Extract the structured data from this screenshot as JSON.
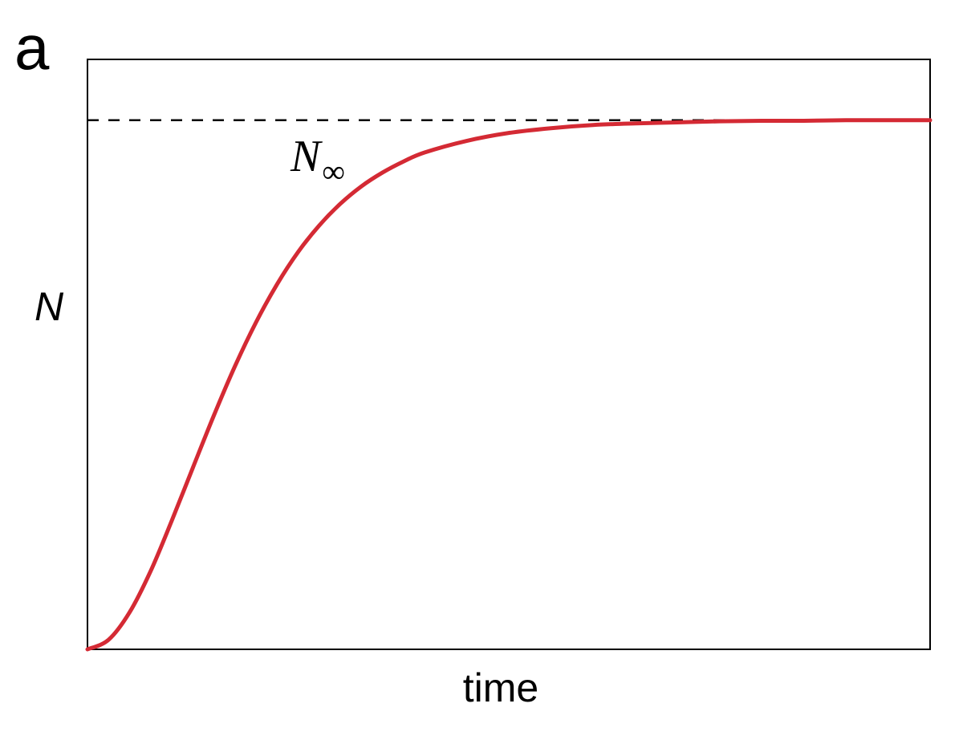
{
  "panel_label": "a",
  "chart_data": {
    "type": "line",
    "xlabel": "time",
    "ylabel": "N",
    "xlim": [
      0,
      10
    ],
    "ylim": [
      0,
      1.115
    ],
    "grid": false,
    "legend": "none",
    "colors": {
      "curve": "#d42a34",
      "asymptote": "#000000",
      "frame": "#000000"
    },
    "series": [
      {
        "x": [
          0,
          0.25,
          0.5,
          0.75,
          1.0,
          1.25,
          1.5,
          1.75,
          2.0,
          2.25,
          2.5,
          2.75,
          3.0,
          3.25,
          3.5,
          3.75,
          4.0,
          4.5,
          5.0,
          5.5,
          6.0,
          6.5,
          7.0,
          7.5,
          8.0,
          8.5,
          9.0,
          9.5,
          10.0
        ],
        "y": [
          0.0,
          0.018,
          0.07,
          0.148,
          0.243,
          0.343,
          0.442,
          0.535,
          0.618,
          0.69,
          0.751,
          0.801,
          0.842,
          0.875,
          0.901,
          0.922,
          0.939,
          0.961,
          0.976,
          0.985,
          0.991,
          0.994,
          0.996,
          0.998,
          0.999,
          0.999,
          1.0,
          1.0,
          1.0
        ]
      }
    ],
    "annotations": [
      {
        "text": "N",
        "subscript": "∞",
        "y": 1.0,
        "style": "dashed-horizontal-line"
      }
    ]
  }
}
